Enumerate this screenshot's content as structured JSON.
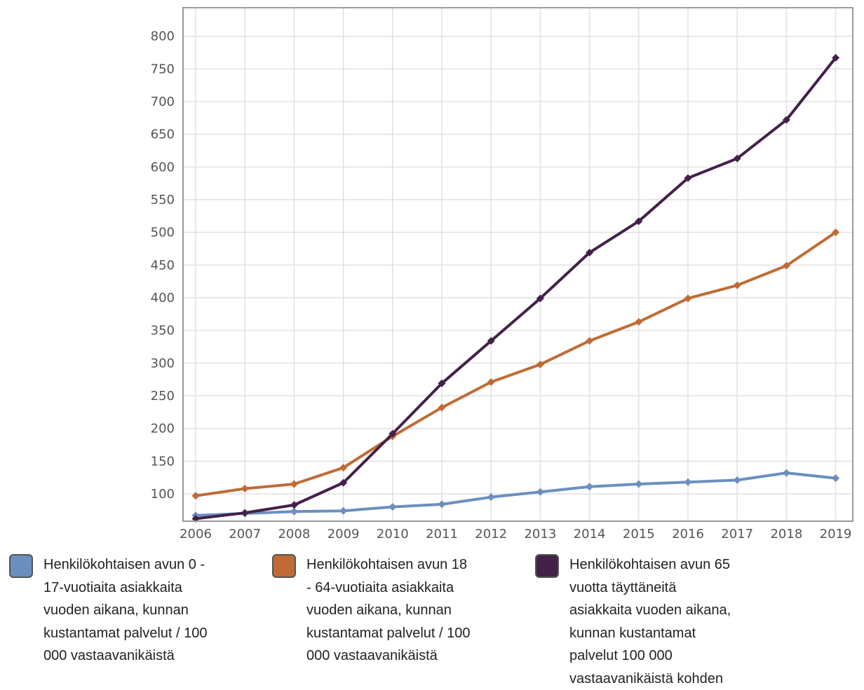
{
  "chart_data": {
    "type": "line",
    "title": "",
    "xlabel": "",
    "ylabel": "",
    "categories": [
      "2006",
      "2007",
      "2008",
      "2009",
      "2010",
      "2011",
      "2012",
      "2013",
      "2014",
      "2015",
      "2016",
      "2017",
      "2018",
      "2019"
    ],
    "ylim": [
      55,
      840
    ],
    "yticks": [
      100,
      150,
      200,
      250,
      300,
      350,
      400,
      450,
      500,
      550,
      600,
      650,
      700,
      750,
      800
    ],
    "grid": true,
    "legend_position": "bottom",
    "series": [
      {
        "name": "Henkilökohtaisen avun 0 - 17-vuotiaita asiakkaita vuoden aikana, kunnan kustantamat palvelut / 100 000 vastaavanikäistä",
        "color": "#6b8fbf",
        "values": [
          67,
          70,
          73,
          74,
          80,
          84,
          95,
          103,
          111,
          115,
          118,
          121,
          132,
          124
        ]
      },
      {
        "name": "Henkilökohtaisen avun 18 - 64-vuotiaita asiakkaita vuoden aikana, kunnan kustantamat palvelut / 100 000 vastaavanikäistä",
        "color": "#c06b35",
        "values": [
          97,
          108,
          115,
          140,
          188,
          232,
          271,
          298,
          334,
          363,
          399,
          419,
          449,
          500
        ]
      },
      {
        "name": "Henkilökohtaisen avun 65 vuotta täyttäneitä asiakkaita vuoden aikana, kunnan kustantamat palvelut 100 000 vastaavanikäistä kohden",
        "color": "#432149",
        "values": [
          62,
          71,
          83,
          117,
          192,
          269,
          334,
          399,
          469,
          517,
          583,
          613,
          672,
          767
        ]
      }
    ]
  },
  "legend": {
    "item1": {
      "line1": "Henkilökohtaisen avun 0 -",
      "line2": "17-vuotiaita asiakkaita",
      "line3": "vuoden aikana, kunnan",
      "line4": "kustantamat palvelut / 100",
      "line5": "000 vastaavanikäistä"
    },
    "item2": {
      "line1": "Henkilökohtaisen avun 18",
      "line2": "- 64-vuotiaita asiakkaita",
      "line3": "vuoden aikana, kunnan",
      "line4": "kustantamat palvelut / 100",
      "line5": "000 vastaavanikäistä"
    },
    "item3": {
      "line1": "Henkilökohtaisen avun 65",
      "line2": "vuotta täyttäneitä",
      "line3": "asiakkaita vuoden aikana,",
      "line4": "kunnan kustantamat",
      "line5": "palvelut 100 000",
      "line6": "vastaavanikäistä kohden"
    }
  }
}
